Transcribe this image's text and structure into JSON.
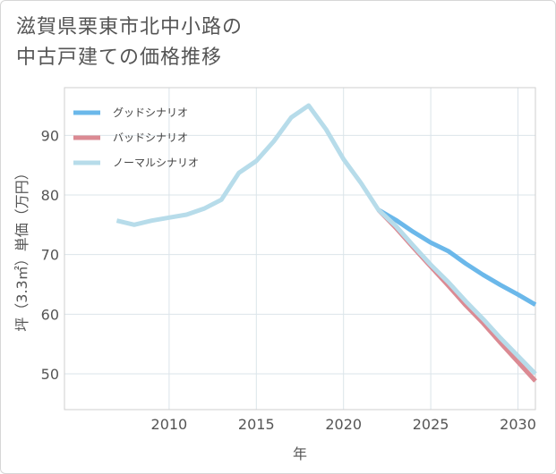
{
  "title_line1": "滋賀県栗東市北中小路の",
  "title_line2": "中古戸建ての価格推移",
  "chart_data": {
    "type": "line",
    "title": "滋賀県栗東市北中小路の中古戸建ての価格推移",
    "xlabel": "年",
    "ylabel": "坪（3.3㎡）単価（万円）",
    "xlim": [
      2004,
      2031
    ],
    "ylim": [
      44,
      98
    ],
    "xticks": [
      2010,
      2015,
      2020,
      2025,
      2030
    ],
    "yticks": [
      50,
      60,
      70,
      80,
      90
    ],
    "grid": true,
    "legend": "top-left",
    "series": [
      {
        "name": "グッドシナリオ",
        "color": "#6bb8ea",
        "x": [
          2022,
          2023,
          2024,
          2025,
          2026,
          2027,
          2028,
          2029,
          2030,
          2031
        ],
        "y": [
          77.5,
          75.8,
          73.8,
          72.0,
          70.6,
          68.5,
          66.6,
          64.9,
          63.3,
          61.6
        ]
      },
      {
        "name": "バッドシナリオ",
        "color": "#db8a93",
        "x": [
          2022,
          2023,
          2024,
          2025,
          2026,
          2027,
          2028,
          2029,
          2030,
          2031
        ],
        "y": [
          77.5,
          74.5,
          71.2,
          68.0,
          64.8,
          61.5,
          58.5,
          55.2,
          52.0,
          48.8
        ]
      },
      {
        "name": "ノーマルシナリオ",
        "color": "#b7dcea",
        "x": [
          2007,
          2008,
          2009,
          2010,
          2011,
          2012,
          2013,
          2014,
          2015,
          2016,
          2017,
          2018,
          2019,
          2020,
          2021,
          2022,
          2023,
          2024,
          2025,
          2026,
          2027,
          2028,
          2029,
          2030,
          2031
        ],
        "y": [
          75.7,
          75.0,
          75.7,
          76.2,
          76.7,
          77.7,
          79.2,
          83.7,
          85.7,
          89.0,
          93.0,
          95.0,
          91.0,
          86.0,
          82.0,
          77.5,
          74.8,
          71.5,
          68.3,
          65.4,
          62.2,
          59.2,
          56.0,
          53.0,
          50.0
        ]
      }
    ]
  }
}
